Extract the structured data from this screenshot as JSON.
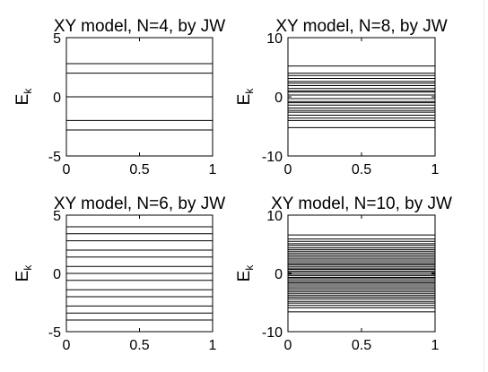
{
  "chart_data": [
    {
      "type": "line",
      "title": "XY model, N=4, by JW",
      "ylabel": "E",
      "ylabel_subscript": "k",
      "xlim": [
        0,
        1
      ],
      "ylim": [
        -5,
        5
      ],
      "xticks": [
        "0",
        "0.5",
        "1"
      ],
      "yticks": [
        "5",
        "0",
        "-5"
      ],
      "grid": false,
      "levels": [
        2.8,
        2.0,
        0.0,
        0.0,
        -2.0,
        -2.8
      ]
    },
    {
      "type": "line",
      "title": "XY model, N=8, by JW",
      "ylabel": "E",
      "ylabel_subscript": "k",
      "xlim": [
        0,
        1
      ],
      "ylim": [
        -10,
        10
      ],
      "xticks": [
        "0",
        "0.5",
        "1"
      ],
      "yticks": [
        "10",
        "0",
        "-10"
      ],
      "grid": false,
      "levels": [
        5.2,
        4.0,
        3.6,
        3.1,
        2.6,
        2.3,
        1.9,
        1.4,
        1.0,
        0.8,
        0.3,
        -0.3,
        -0.8,
        -1.0,
        -1.4,
        -1.9,
        -2.3,
        -2.6,
        -3.1,
        -3.6,
        -4.0,
        -5.2
      ]
    },
    {
      "type": "line",
      "title": "XY model, N=6, by JW",
      "ylabel": "E",
      "ylabel_subscript": "k",
      "xlim": [
        0,
        1
      ],
      "ylim": [
        -5,
        5
      ],
      "xticks": [
        "0",
        "0.5",
        "1"
      ],
      "yticks": [
        "5",
        "0",
        "-5"
      ],
      "grid": false,
      "levels": [
        4.0,
        3.4,
        2.8,
        2.0,
        1.4,
        0.6,
        0.0,
        -0.6,
        -1.4,
        -2.0,
        -2.8,
        -3.4,
        -4.0
      ]
    },
    {
      "type": "line",
      "title": "XY model, N=10, by JW",
      "ylabel": "E",
      "ylabel_subscript": "k",
      "xlim": [
        0,
        1
      ],
      "ylim": [
        -10,
        10
      ],
      "xticks": [
        "0",
        "0.5",
        "1"
      ],
      "yticks": [
        "10",
        "0",
        "-10"
      ],
      "grid": false,
      "levels": [
        6.6,
        5.9,
        5.5,
        5.1,
        4.8,
        4.4,
        4.1,
        3.8,
        3.5,
        3.2,
        2.9,
        2.6,
        2.3,
        2.0,
        1.7,
        1.5,
        1.2,
        0.9,
        0.7,
        0.4,
        0.15,
        -0.15,
        -0.4,
        -0.7,
        -0.9,
        -1.2,
        -1.5,
        -1.7,
        -2.0,
        -2.3,
        -2.6,
        -2.9,
        -3.2,
        -3.5,
        -3.8,
        -4.1,
        -4.4,
        -4.8,
        -5.1,
        -5.5,
        -5.9,
        -6.6
      ]
    }
  ]
}
